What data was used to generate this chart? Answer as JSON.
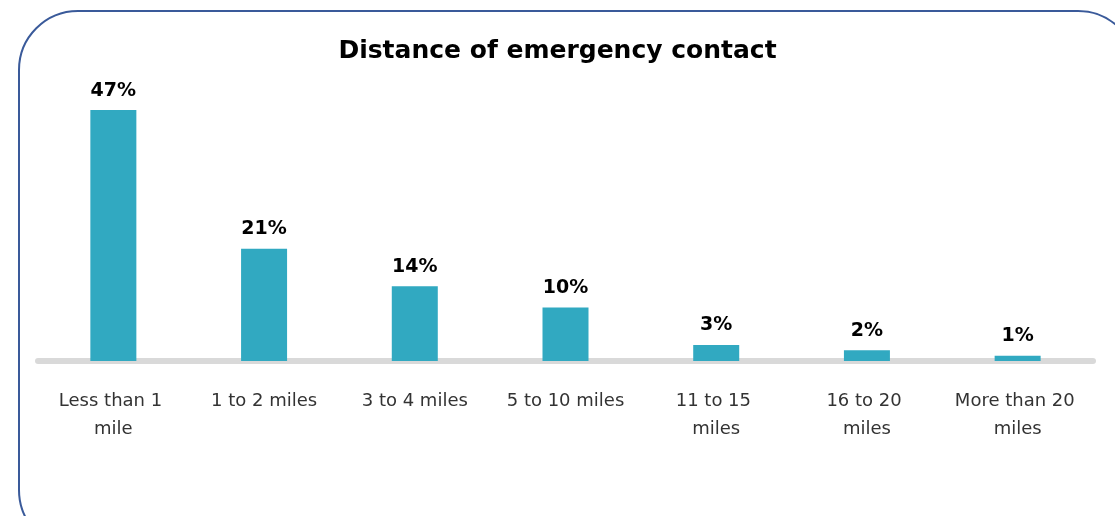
{
  "chart_data": {
    "type": "bar",
    "title": "Distance of emergency contact",
    "categories": [
      "Less than 1 mile",
      "1 to 2 miles",
      "3 to 4 miles",
      "5 to 10 miles",
      "11 to 15 miles",
      "16 to 20 miles",
      "More than 20 miles"
    ],
    "values": [
      47,
      21,
      14,
      10,
      3,
      2,
      1
    ],
    "value_labels": [
      "47%",
      "21%",
      "14%",
      "10%",
      "3%",
      "2%",
      "1%"
    ],
    "color": "#31a9c1"
  }
}
